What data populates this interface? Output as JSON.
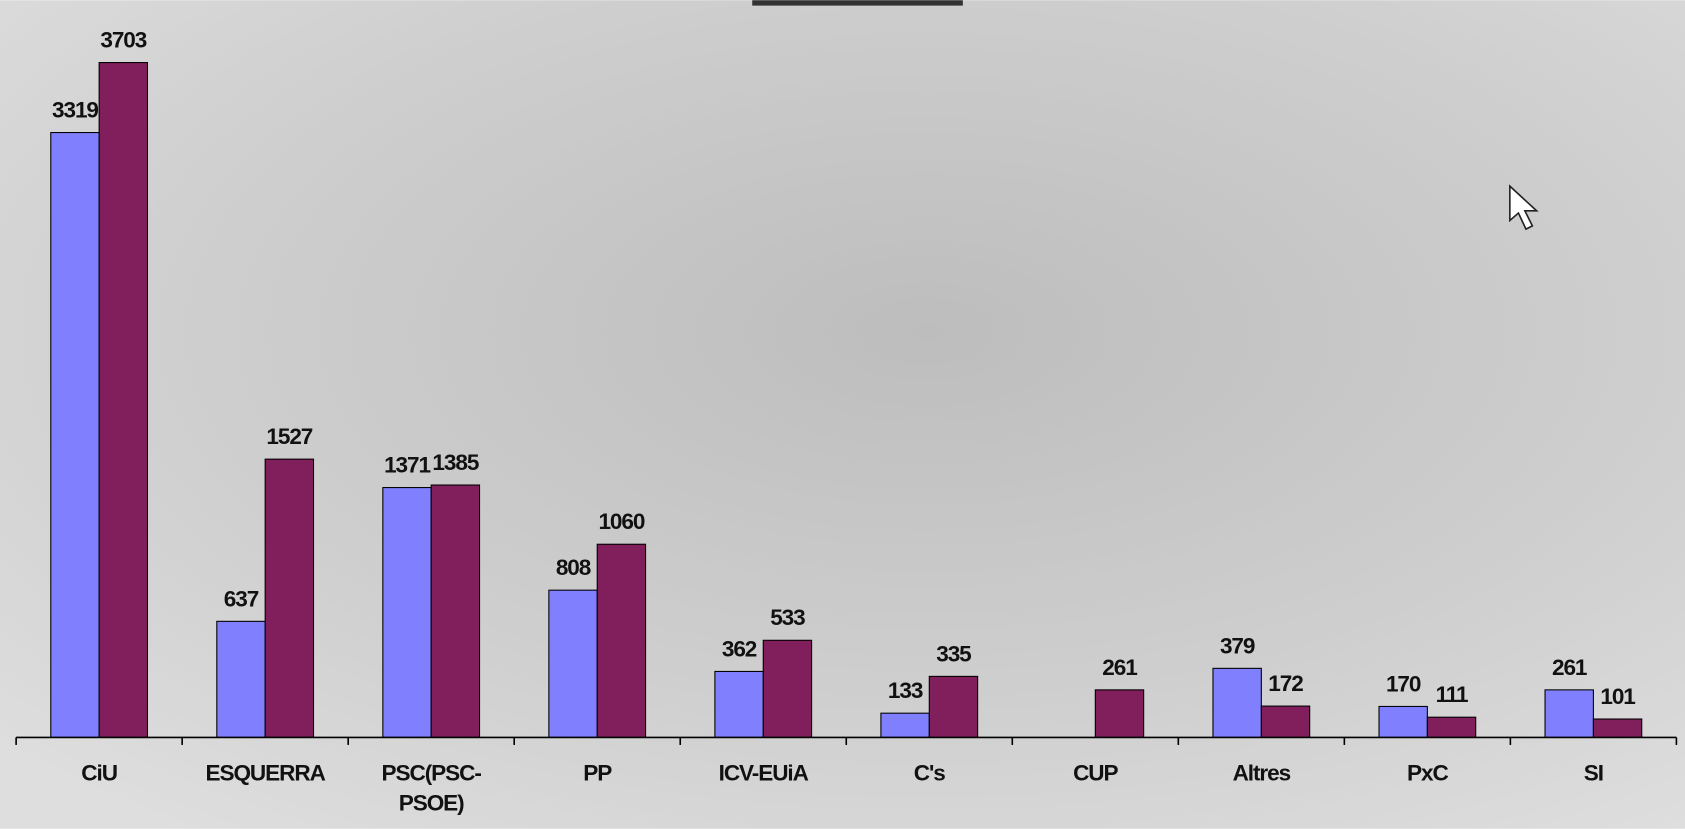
{
  "chart_data": {
    "type": "bar",
    "categories": [
      "CiU",
      "ESQUERRA",
      "PSC(PSC-PSOE)",
      "PP",
      "ICV-EUiA",
      "C's",
      "CUP",
      "Altres",
      "PxC",
      "SI"
    ],
    "series": [
      {
        "color": "#8080ff",
        "values": [
          3319,
          637,
          1371,
          808,
          362,
          133,
          null,
          379,
          170,
          261
        ]
      },
      {
        "color": "#801f5c",
        "values": [
          3703,
          1527,
          1385,
          1060,
          533,
          335,
          261,
          172,
          111,
          101
        ]
      }
    ]
  }
}
